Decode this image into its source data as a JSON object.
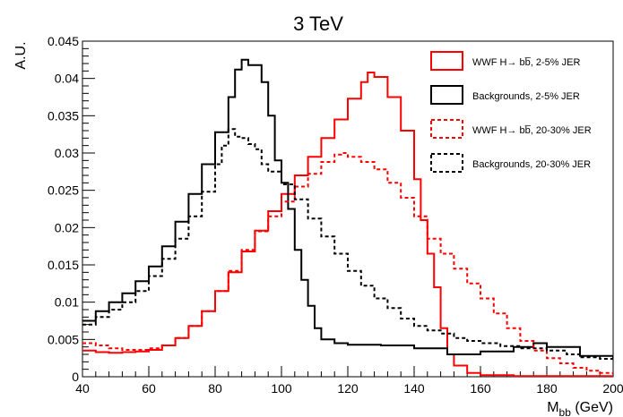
{
  "chart_data": {
    "type": "line",
    "title": "3 TeV",
    "xlabel_main": "M",
    "xlabel_sub": "bb",
    "xlabel_unit": " (GeV)",
    "ylabel": "A.U.",
    "xlim": [
      40,
      200
    ],
    "ylim": [
      0,
      0.045
    ],
    "x_ticks": [
      40,
      60,
      80,
      100,
      120,
      140,
      160,
      180,
      200
    ],
    "x_tick_labels": [
      "40",
      "60",
      "80",
      "100",
      "120",
      "140",
      "160",
      "180",
      "200"
    ],
    "y_ticks": [
      0,
      0.005,
      0.01,
      0.015,
      0.02,
      0.025,
      0.03,
      0.035,
      0.04,
      0.045
    ],
    "y_tick_labels": [
      "0",
      "0.005",
      "0.01",
      "0.015",
      "0.02",
      "0.025",
      "0.03",
      "0.035",
      "0.04",
      "0.045"
    ],
    "grid": false,
    "legend_position": "top-right",
    "series": [
      {
        "name": "WWF H→ bb̅, 2-5% JER",
        "color": "#ff0000",
        "dashed": false,
        "points": [
          [
            40,
            0.0035
          ],
          [
            44,
            0.0033
          ],
          [
            48,
            0.0032
          ],
          [
            52,
            0.0033
          ],
          [
            56,
            0.0034
          ],
          [
            60,
            0.0036
          ],
          [
            64,
            0.0042
          ],
          [
            68,
            0.0052
          ],
          [
            72,
            0.0068
          ],
          [
            76,
            0.0088
          ],
          [
            80,
            0.0115
          ],
          [
            84,
            0.014
          ],
          [
            88,
            0.0168
          ],
          [
            92,
            0.0196
          ],
          [
            96,
            0.0222
          ],
          [
            100,
            0.0245
          ],
          [
            104,
            0.027
          ],
          [
            108,
            0.0295
          ],
          [
            112,
            0.032
          ],
          [
            116,
            0.0345
          ],
          [
            120,
            0.0373
          ],
          [
            124,
            0.0395
          ],
          [
            126,
            0.0408
          ],
          [
            128,
            0.0402
          ],
          [
            132,
            0.0375
          ],
          [
            136,
            0.033
          ],
          [
            140,
            0.0265
          ],
          [
            142,
            0.021
          ],
          [
            144,
            0.0165
          ],
          [
            146,
            0.012
          ],
          [
            148,
            0.0065
          ],
          [
            150,
            0.003
          ],
          [
            152,
            0.0015
          ],
          [
            156,
            0.0005
          ],
          [
            160,
            0.0002
          ],
          [
            170,
            0.0001
          ],
          [
            200,
            0.0001
          ]
        ]
      },
      {
        "name": "Backgrounds, 2-5% JER",
        "color": "#000000",
        "dashed": false,
        "points": [
          [
            40,
            0.0075
          ],
          [
            44,
            0.0088
          ],
          [
            48,
            0.01
          ],
          [
            52,
            0.0112
          ],
          [
            56,
            0.0128
          ],
          [
            60,
            0.0148
          ],
          [
            64,
            0.0175
          ],
          [
            68,
            0.0208
          ],
          [
            72,
            0.0245
          ],
          [
            76,
            0.0285
          ],
          [
            80,
            0.0328
          ],
          [
            84,
            0.0375
          ],
          [
            86,
            0.0412
          ],
          [
            88,
            0.0425
          ],
          [
            90,
            0.0418
          ],
          [
            94,
            0.0395
          ],
          [
            96,
            0.035
          ],
          [
            98,
            0.029
          ],
          [
            100,
            0.026
          ],
          [
            102,
            0.0225
          ],
          [
            104,
            0.017
          ],
          [
            106,
            0.013
          ],
          [
            108,
            0.0095
          ],
          [
            110,
            0.0065
          ],
          [
            112,
            0.005
          ],
          [
            116,
            0.0045
          ],
          [
            120,
            0.0043
          ],
          [
            130,
            0.0042
          ],
          [
            140,
            0.0038
          ],
          [
            150,
            0.003
          ],
          [
            160,
            0.0034
          ],
          [
            170,
            0.004
          ],
          [
            176,
            0.0045
          ],
          [
            180,
            0.004
          ],
          [
            190,
            0.0028
          ],
          [
            200,
            0.0024
          ]
        ]
      },
      {
        "name": "WWF H→ bb̅, 20-30% JER",
        "color": "#ff0000",
        "dashed": true,
        "points": [
          [
            40,
            0.0045
          ],
          [
            44,
            0.0042
          ],
          [
            48,
            0.0038
          ],
          [
            52,
            0.0036
          ],
          [
            56,
            0.0036
          ],
          [
            60,
            0.0038
          ],
          [
            64,
            0.0042
          ],
          [
            68,
            0.0052
          ],
          [
            72,
            0.0068
          ],
          [
            76,
            0.0088
          ],
          [
            80,
            0.0115
          ],
          [
            84,
            0.0142
          ],
          [
            88,
            0.017
          ],
          [
            92,
            0.0195
          ],
          [
            96,
            0.0215
          ],
          [
            100,
            0.0235
          ],
          [
            104,
            0.0255
          ],
          [
            108,
            0.0272
          ],
          [
            112,
            0.0288
          ],
          [
            116,
            0.0298
          ],
          [
            118,
            0.03
          ],
          [
            120,
            0.0295
          ],
          [
            124,
            0.0288
          ],
          [
            128,
            0.0278
          ],
          [
            132,
            0.026
          ],
          [
            136,
            0.024
          ],
          [
            140,
            0.0215
          ],
          [
            144,
            0.0185
          ],
          [
            148,
            0.0165
          ],
          [
            152,
            0.0145
          ],
          [
            156,
            0.0125
          ],
          [
            160,
            0.0105
          ],
          [
            164,
            0.0085
          ],
          [
            168,
            0.0065
          ],
          [
            172,
            0.0048
          ],
          [
            176,
            0.0035
          ],
          [
            180,
            0.0025
          ],
          [
            184,
            0.0018
          ],
          [
            188,
            0.0012
          ],
          [
            192,
            0.0008
          ],
          [
            196,
            0.0005
          ],
          [
            200,
            0.0003
          ]
        ]
      },
      {
        "name": "Backgrounds, 20-30% JER",
        "color": "#000000",
        "dashed": true,
        "points": [
          [
            40,
            0.007
          ],
          [
            44,
            0.008
          ],
          [
            48,
            0.009
          ],
          [
            52,
            0.01
          ],
          [
            56,
            0.0115
          ],
          [
            60,
            0.0135
          ],
          [
            64,
            0.0158
          ],
          [
            68,
            0.0185
          ],
          [
            72,
            0.0215
          ],
          [
            76,
            0.0248
          ],
          [
            80,
            0.0285
          ],
          [
            82,
            0.031
          ],
          [
            84,
            0.0332
          ],
          [
            86,
            0.0322
          ],
          [
            88,
            0.032
          ],
          [
            90,
            0.0312
          ],
          [
            92,
            0.0305
          ],
          [
            94,
            0.0285
          ],
          [
            96,
            0.0275
          ],
          [
            100,
            0.0258
          ],
          [
            104,
            0.0238
          ],
          [
            108,
            0.0212
          ],
          [
            112,
            0.0188
          ],
          [
            116,
            0.0165
          ],
          [
            120,
            0.0142
          ],
          [
            124,
            0.0122
          ],
          [
            128,
            0.0105
          ],
          [
            132,
            0.0092
          ],
          [
            136,
            0.0078
          ],
          [
            140,
            0.0068
          ],
          [
            144,
            0.0062
          ],
          [
            148,
            0.0058
          ],
          [
            152,
            0.0052
          ],
          [
            156,
            0.0048
          ],
          [
            160,
            0.0045
          ],
          [
            166,
            0.0041
          ],
          [
            172,
            0.0038
          ],
          [
            180,
            0.0035
          ],
          [
            186,
            0.003
          ],
          [
            190,
            0.0026
          ],
          [
            196,
            0.0024
          ],
          [
            200,
            0.0024
          ]
        ]
      }
    ]
  }
}
